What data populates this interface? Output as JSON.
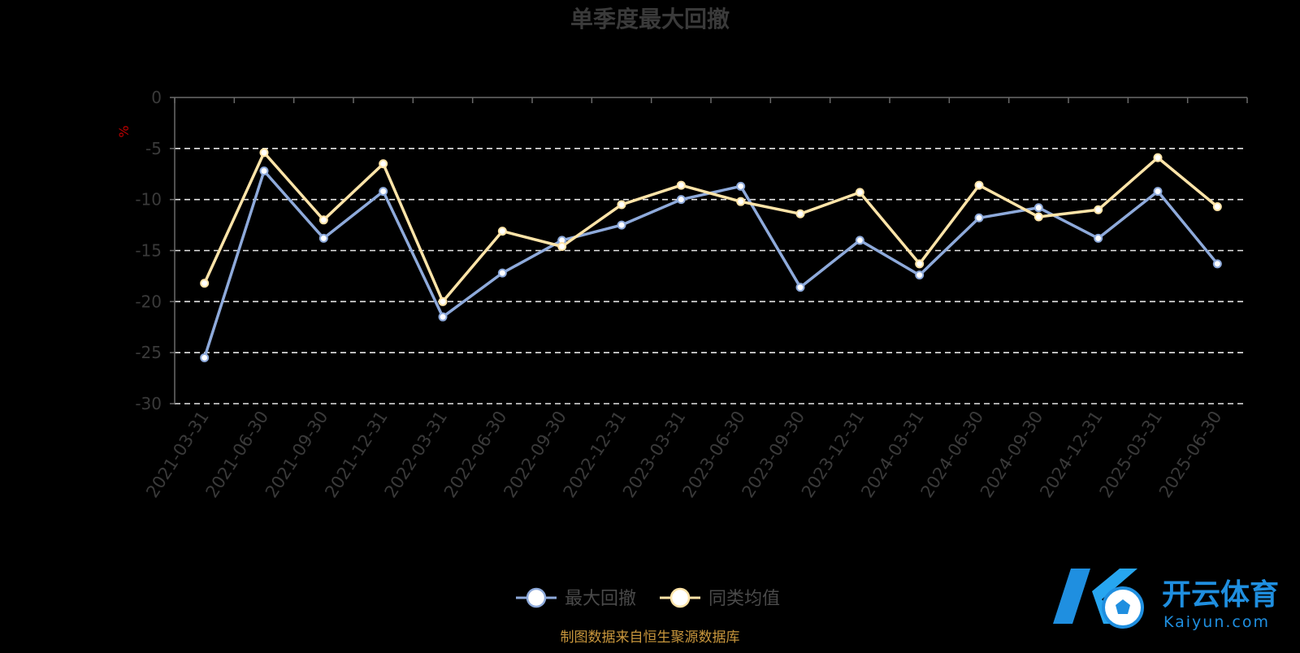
{
  "chart_data": {
    "type": "line",
    "title": "单季度最大回撤",
    "y_unit": "%",
    "ylim": [
      -30,
      0
    ],
    "y_ticks": [
      0,
      -5,
      -10,
      -15,
      -20,
      -25,
      -30
    ],
    "grid": "dashed horizontal",
    "legend_position": "bottom-center",
    "categories": [
      "2021-03-31",
      "2021-06-30",
      "2021-09-30",
      "2021-12-31",
      "2022-03-31",
      "2022-06-30",
      "2022-09-30",
      "2022-12-31",
      "2023-03-31",
      "2023-06-30",
      "2023-09-30",
      "2023-12-31",
      "2024-03-31",
      "2024-06-30",
      "2024-09-30",
      "2024-12-31",
      "2025-03-31",
      "2025-06-30"
    ],
    "series": [
      {
        "name": "最大回撤",
        "color": "#8eaadb",
        "values": [
          -25.5,
          -7.2,
          -13.8,
          -9.2,
          -21.5,
          -17.2,
          -14.0,
          -12.5,
          -10.0,
          -8.7,
          -18.6,
          -14.0,
          -17.4,
          -11.8,
          -10.8,
          -13.8,
          -9.2,
          -16.3
        ]
      },
      {
        "name": "同类均值",
        "color": "#ffe4a8",
        "values": [
          -18.2,
          -5.4,
          -12.0,
          -6.5,
          -20.0,
          -13.1,
          -14.6,
          -10.5,
          -8.6,
          -10.2,
          -11.4,
          -9.3,
          -16.3,
          -8.6,
          -11.7,
          -11.0,
          -5.9,
          -10.7
        ]
      }
    ]
  },
  "source_note": "制图数据来自恒生聚源数据库",
  "watermark": {
    "main": "开云体育",
    "sub": "Kaiyun.com",
    "accent": "#1f8fe0"
  }
}
